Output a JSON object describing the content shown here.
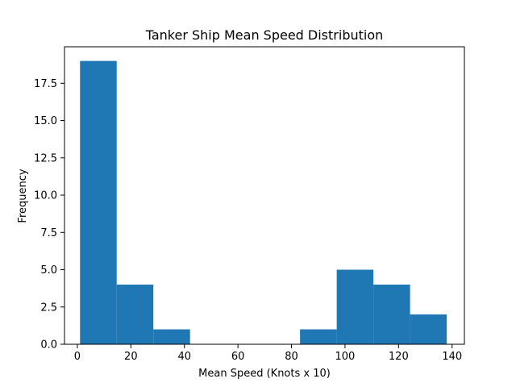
{
  "chart_data": {
    "type": "bar",
    "title": "Tanker Ship Mean Speed Distribution",
    "xlabel": "Mean Speed (Knots x 10)",
    "ylabel": "Frequency",
    "xlim": [
      -4.8,
      144.6
    ],
    "ylim": [
      0,
      19.95
    ],
    "grid": false,
    "bar_color": "#1f77b4",
    "bins": [
      {
        "x0": 1.0,
        "x1": 14.7,
        "count": 19
      },
      {
        "x0": 14.7,
        "x1": 28.4,
        "count": 4
      },
      {
        "x0": 28.4,
        "x1": 42.1,
        "count": 1
      },
      {
        "x0": 42.1,
        "x1": 55.8,
        "count": 0
      },
      {
        "x0": 55.8,
        "x1": 69.5,
        "count": 0
      },
      {
        "x0": 69.5,
        "x1": 83.2,
        "count": 0
      },
      {
        "x0": 83.2,
        "x1": 96.9,
        "count": 1
      },
      {
        "x0": 96.9,
        "x1": 110.6,
        "count": 5
      },
      {
        "x0": 110.6,
        "x1": 124.3,
        "count": 4
      },
      {
        "x0": 124.3,
        "x1": 138.0,
        "count": 2
      }
    ],
    "x_ticks": [
      {
        "value": 0,
        "label": "0"
      },
      {
        "value": 20,
        "label": "20"
      },
      {
        "value": 40,
        "label": "40"
      },
      {
        "value": 60,
        "label": "60"
      },
      {
        "value": 80,
        "label": "80"
      },
      {
        "value": 100,
        "label": "100"
      },
      {
        "value": 120,
        "label": "120"
      },
      {
        "value": 140,
        "label": "140"
      }
    ],
    "y_ticks": [
      {
        "value": 0,
        "label": "0.0"
      },
      {
        "value": 2.5,
        "label": "2.5"
      },
      {
        "value": 5,
        "label": "5.0"
      },
      {
        "value": 7.5,
        "label": "7.5"
      },
      {
        "value": 10,
        "label": "10.0"
      },
      {
        "value": 12.5,
        "label": "12.5"
      },
      {
        "value": 15,
        "label": "15.0"
      },
      {
        "value": 17.5,
        "label": "17.5"
      }
    ]
  }
}
